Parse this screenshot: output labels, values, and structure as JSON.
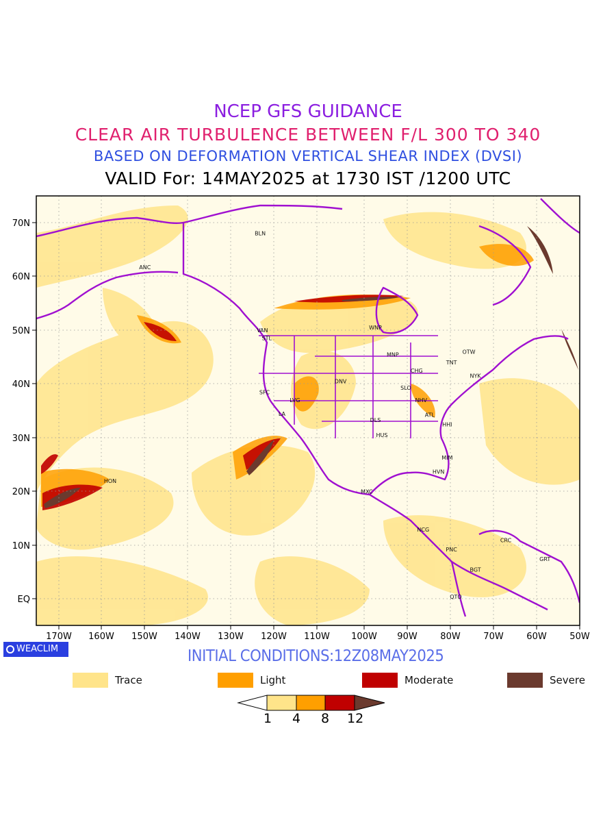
{
  "titles": {
    "line1": "NCEP GFS GUIDANCE",
    "line2": "CLEAR AIR TURBULENCE BETWEEN F/L 300 TO 340",
    "line3": "BASED ON DEFORMATION VERTICAL SHEAR INDEX (DVSI)",
    "line4": "VALID For: 14MAY2025 at 1730 IST /1200 UTC"
  },
  "colors": {
    "title1": "#8b1ee0",
    "title2": "#e0206e",
    "title3": "#2f4fe0",
    "title4": "#000000",
    "coastline": "#a010d0",
    "trace": "#ffe48a",
    "light": "#ff9f00",
    "moderate": "#c00000",
    "severe": "#6b3a2e",
    "brand_bg": "#2a3fe0",
    "init_text": "#5a6ee8"
  },
  "axes": {
    "lat_labels": [
      "70N",
      "60N",
      "50N",
      "40N",
      "30N",
      "20N",
      "10N",
      "EQ"
    ],
    "lon_labels": [
      "170W",
      "160W",
      "150W",
      "140W",
      "130W",
      "120W",
      "110W",
      "100W",
      "90W",
      "80W",
      "70W",
      "60W",
      "50W"
    ]
  },
  "stations": [
    {
      "name": "ANC",
      "lon": -150.0,
      "lat": 61.2
    },
    {
      "name": "BLN",
      "lon": -123.5,
      "lat": 67.5
    },
    {
      "name": "VAN",
      "lon": -123.0,
      "lat": 49.5
    },
    {
      "name": "STL",
      "lon": -122.0,
      "lat": 48.0
    },
    {
      "name": "WNP",
      "lon": -97.0,
      "lat": 50.0
    },
    {
      "name": "MNP",
      "lon": -93.0,
      "lat": 45.0
    },
    {
      "name": "TNT",
      "lon": -79.5,
      "lat": 43.5
    },
    {
      "name": "OTW",
      "lon": -75.5,
      "lat": 45.5
    },
    {
      "name": "CHG",
      "lon": -87.5,
      "lat": 42.0
    },
    {
      "name": "NYK",
      "lon": -74.0,
      "lat": 41.0
    },
    {
      "name": "DNV",
      "lon": -105.0,
      "lat": 40.0
    },
    {
      "name": "SLO",
      "lon": -90.0,
      "lat": 38.8
    },
    {
      "name": "SFC",
      "lon": -122.5,
      "lat": 38.0
    },
    {
      "name": "LVG",
      "lon": -115.5,
      "lat": 36.5
    },
    {
      "name": "NHV",
      "lon": -86.5,
      "lat": 36.5
    },
    {
      "name": "LA",
      "lon": -118.5,
      "lat": 34.0
    },
    {
      "name": "ATL",
      "lon": -84.5,
      "lat": 33.8
    },
    {
      "name": "DLS",
      "lon": -97.0,
      "lat": 32.8
    },
    {
      "name": "HHI",
      "lon": -80.5,
      "lat": 32.0
    },
    {
      "name": "HUS",
      "lon": -95.5,
      "lat": 30.0
    },
    {
      "name": "MIM",
      "lon": -80.5,
      "lat": 25.8
    },
    {
      "name": "HVN",
      "lon": -82.5,
      "lat": 23.2
    },
    {
      "name": "HON",
      "lon": -158.0,
      "lat": 21.5
    },
    {
      "name": "MXC",
      "lon": -99.0,
      "lat": 19.5
    },
    {
      "name": "NCG",
      "lon": -86.0,
      "lat": 12.5
    },
    {
      "name": "CRC",
      "lon": -67.0,
      "lat": 10.5
    },
    {
      "name": "PNC",
      "lon": -79.5,
      "lat": 8.8
    },
    {
      "name": "GRT",
      "lon": -58.0,
      "lat": 7.0
    },
    {
      "name": "BGT",
      "lon": -74.0,
      "lat": 5.0
    },
    {
      "name": "QTO",
      "lon": -78.5,
      "lat": 0.0
    }
  ],
  "branding": {
    "label": "WEACLIM"
  },
  "initial_conditions": "INITIAL CONDITIONS:12Z08MAY2025",
  "legend": [
    {
      "label": "Trace",
      "color": "#ffe48a"
    },
    {
      "label": "Light",
      "color": "#ff9f00"
    },
    {
      "label": "Moderate",
      "color": "#c00000"
    },
    {
      "label": "Severe",
      "color": "#6b3a2e"
    }
  ],
  "colorbar": {
    "ticks": [
      "1",
      "4",
      "8",
      "12"
    ]
  }
}
